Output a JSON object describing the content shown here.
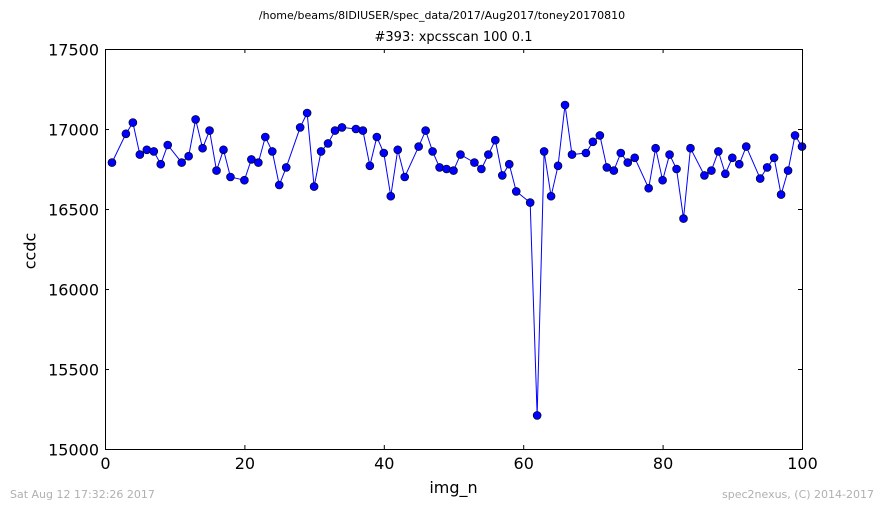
{
  "figure": {
    "suptitle": "/home/beams/8IDIUSER/spec_data/2017/Aug2017/toney20170810",
    "footer_left": "Sat Aug 12 17:32:26 2017",
    "footer_right": "spec2nexus, (C) 2014-2017"
  },
  "chart_data": {
    "type": "line",
    "title": "#393: xpcsscan 100 0.1",
    "xlabel": "img_n",
    "ylabel": "ccdc",
    "xlim": [
      0,
      100
    ],
    "ylim": [
      15000,
      17500
    ],
    "xticks": [
      0,
      20,
      40,
      60,
      80,
      100
    ],
    "yticks": [
      15000,
      15500,
      16000,
      16500,
      17000,
      17500
    ],
    "grid": false,
    "line_color": "#0000ff",
    "marker": "circle",
    "series": [
      {
        "x": [
          1,
          3,
          4,
          5,
          6,
          7,
          8,
          9,
          11,
          12,
          13,
          14,
          15,
          16,
          17,
          18,
          20,
          21,
          22,
          23,
          24,
          25,
          26,
          28,
          29,
          30,
          31,
          32,
          33,
          34,
          36,
          37,
          38,
          39,
          40,
          41,
          42,
          43,
          45,
          46,
          47,
          48,
          49,
          50,
          51,
          53,
          54,
          55,
          56,
          57,
          58,
          59,
          61,
          62,
          63,
          64,
          65,
          66,
          67,
          69,
          70,
          71,
          72,
          73,
          74,
          75,
          76,
          78,
          79,
          80,
          81,
          82,
          83,
          84,
          86,
          87,
          88,
          89,
          90,
          91,
          92,
          94,
          95,
          96,
          97,
          98,
          99,
          100
        ],
        "y": [
          16790,
          16970,
          17040,
          16840,
          16870,
          16860,
          16780,
          16900,
          16790,
          16830,
          17060,
          16880,
          16990,
          16740,
          16870,
          16700,
          16680,
          16810,
          16790,
          16950,
          16860,
          16650,
          16760,
          17010,
          17100,
          16640,
          16860,
          16910,
          16990,
          17010,
          17000,
          16990,
          16770,
          16950,
          16850,
          16580,
          16870,
          16700,
          16890,
          16990,
          16860,
          16760,
          16750,
          16740,
          16840,
          16790,
          16750,
          16840,
          16930,
          16710,
          16780,
          16610,
          16540,
          15210,
          16860,
          16580,
          16770,
          17150,
          16840,
          16850,
          16920,
          16960,
          16760,
          16740,
          16850,
          16790,
          16820,
          16630,
          16880,
          16680,
          16840,
          16750,
          16440,
          16880,
          16710,
          16740,
          16860,
          16720,
          16820,
          16780,
          16890,
          16690,
          16760,
          16820,
          16590,
          16740,
          16960,
          16890
        ]
      }
    ]
  }
}
